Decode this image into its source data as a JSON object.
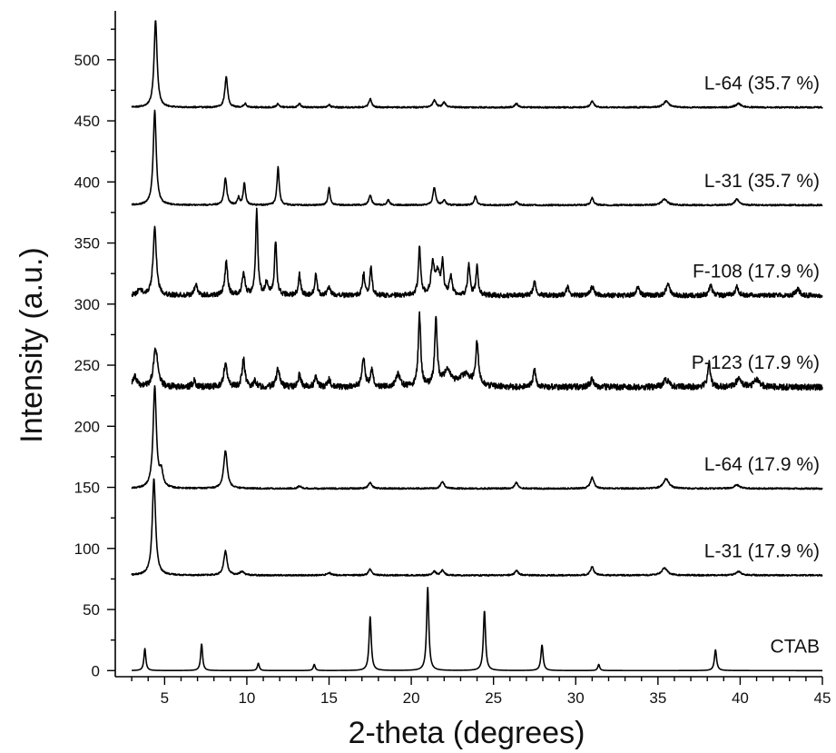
{
  "chart_data": {
    "type": "line",
    "xlabel": "2-theta (degrees)",
    "ylabel": "Intensity (a.u.)",
    "xlim": [
      2,
      45
    ],
    "ylim": [
      -5,
      540
    ],
    "x_ticks": [
      5,
      10,
      15,
      20,
      25,
      30,
      35,
      40,
      45
    ],
    "y_ticks": [
      0,
      50,
      100,
      150,
      200,
      250,
      300,
      350,
      400,
      450,
      500
    ],
    "grid": false,
    "legend": "none",
    "series": [
      {
        "name": "CTAB",
        "baseline": 0,
        "noise": 0,
        "peaks": [
          [
            3.8,
            18,
            0.07
          ],
          [
            7.25,
            22,
            0.07
          ],
          [
            10.7,
            6,
            0.07
          ],
          [
            14.1,
            5,
            0.07
          ],
          [
            17.5,
            44,
            0.08
          ],
          [
            21.0,
            68,
            0.08
          ],
          [
            24.45,
            49,
            0.08
          ],
          [
            27.95,
            21,
            0.08
          ],
          [
            31.4,
            5,
            0.07
          ],
          [
            38.5,
            17,
            0.08
          ]
        ]
      },
      {
        "name": "L-31 (17.9 %)",
        "baseline": 78,
        "noise": 0.6,
        "peaks": [
          [
            4.35,
            79,
            0.12
          ],
          [
            8.7,
            20,
            0.12
          ],
          [
            9.7,
            3,
            0.15
          ],
          [
            15.0,
            2,
            0.15
          ],
          [
            17.5,
            5,
            0.12
          ],
          [
            21.4,
            3,
            0.12
          ],
          [
            21.9,
            4,
            0.12
          ],
          [
            26.4,
            4,
            0.12
          ],
          [
            31.0,
            7,
            0.12
          ],
          [
            35.4,
            6,
            0.2
          ],
          [
            39.9,
            3,
            0.2
          ]
        ]
      },
      {
        "name": "L-64 (17.9 %)",
        "baseline": 149,
        "noise": 0.6,
        "peaks": [
          [
            4.4,
            83,
            0.12
          ],
          [
            4.8,
            12,
            0.12
          ],
          [
            8.7,
            31,
            0.13
          ],
          [
            13.2,
            2,
            0.12
          ],
          [
            17.5,
            5,
            0.12
          ],
          [
            21.9,
            6,
            0.12
          ],
          [
            26.4,
            5,
            0.12
          ],
          [
            31.0,
            9,
            0.13
          ],
          [
            35.5,
            8,
            0.2
          ],
          [
            39.8,
            3,
            0.2
          ]
        ]
      },
      {
        "name": "P-123 (17.9 %)",
        "baseline": 232,
        "noise": 2.5,
        "peaks": [
          [
            3.2,
            8,
            0.15
          ],
          [
            4.45,
            32,
            0.15
          ],
          [
            6.8,
            5,
            0.12
          ],
          [
            8.7,
            19,
            0.12
          ],
          [
            9.8,
            23,
            0.1
          ],
          [
            10.5,
            5,
            0.1
          ],
          [
            11.9,
            15,
            0.12
          ],
          [
            13.2,
            10,
            0.1
          ],
          [
            14.2,
            8,
            0.1
          ],
          [
            15.0,
            6,
            0.1
          ],
          [
            17.1,
            25,
            0.1
          ],
          [
            17.6,
            14,
            0.1
          ],
          [
            19.2,
            10,
            0.15
          ],
          [
            20.5,
            58,
            0.09
          ],
          [
            21.5,
            55,
            0.09
          ],
          [
            22.2,
            12,
            0.3
          ],
          [
            23.3,
            10,
            0.4
          ],
          [
            24.0,
            35,
            0.1
          ],
          [
            27.5,
            14,
            0.1
          ],
          [
            31.0,
            6,
            0.15
          ],
          [
            35.5,
            6,
            0.2
          ],
          [
            38.1,
            20,
            0.1
          ],
          [
            39.9,
            6,
            0.2
          ],
          [
            41.0,
            6,
            0.2
          ]
        ]
      },
      {
        "name": "F-108 (17.9 %)",
        "baseline": 307,
        "noise": 2.0,
        "peaks": [
          [
            3.5,
            5,
            0.15
          ],
          [
            4.4,
            55,
            0.12
          ],
          [
            6.9,
            9,
            0.1
          ],
          [
            8.75,
            28,
            0.1
          ],
          [
            9.8,
            18,
            0.1
          ],
          [
            10.6,
            70,
            0.08
          ],
          [
            11.2,
            10,
            0.1
          ],
          [
            11.75,
            45,
            0.08
          ],
          [
            13.2,
            17,
            0.08
          ],
          [
            14.2,
            18,
            0.08
          ],
          [
            15.0,
            6,
            0.1
          ],
          [
            17.1,
            18,
            0.08
          ],
          [
            17.55,
            23,
            0.08
          ],
          [
            20.5,
            40,
            0.08
          ],
          [
            21.3,
            24,
            0.12
          ],
          [
            21.6,
            18,
            0.15
          ],
          [
            21.9,
            25,
            0.08
          ],
          [
            22.4,
            15,
            0.1
          ],
          [
            23.5,
            26,
            0.08
          ],
          [
            24.0,
            23,
            0.08
          ],
          [
            27.5,
            11,
            0.1
          ],
          [
            29.5,
            7,
            0.1
          ],
          [
            31.0,
            7,
            0.12
          ],
          [
            33.8,
            8,
            0.1
          ],
          [
            35.6,
            10,
            0.12
          ],
          [
            38.2,
            8,
            0.12
          ],
          [
            39.8,
            7,
            0.12
          ],
          [
            43.5,
            5,
            0.15
          ]
        ]
      },
      {
        "name": "L-31 (35.7 %)",
        "baseline": 381,
        "noise": 0.6,
        "peaks": [
          [
            4.4,
            77,
            0.11
          ],
          [
            8.7,
            22,
            0.1
          ],
          [
            9.5,
            6,
            0.08
          ],
          [
            9.85,
            18,
            0.08
          ],
          [
            11.9,
            31,
            0.08
          ],
          [
            15.0,
            14,
            0.08
          ],
          [
            17.5,
            8,
            0.1
          ],
          [
            18.6,
            4,
            0.1
          ],
          [
            21.4,
            14,
            0.1
          ],
          [
            22.0,
            4,
            0.1
          ],
          [
            23.9,
            7,
            0.1
          ],
          [
            26.4,
            3,
            0.1
          ],
          [
            31.0,
            6,
            0.1
          ],
          [
            35.4,
            5,
            0.2
          ],
          [
            39.8,
            5,
            0.15
          ]
        ]
      },
      {
        "name": "L-64 (35.7 %)",
        "baseline": 461,
        "noise": 0.6,
        "peaks": [
          [
            4.45,
            71,
            0.11
          ],
          [
            8.75,
            25,
            0.1
          ],
          [
            9.9,
            3,
            0.1
          ],
          [
            11.9,
            3,
            0.1
          ],
          [
            13.2,
            3,
            0.1
          ],
          [
            15.0,
            2,
            0.1
          ],
          [
            17.5,
            7,
            0.1
          ],
          [
            21.4,
            6,
            0.12
          ],
          [
            22.0,
            4,
            0.12
          ],
          [
            26.4,
            3,
            0.12
          ],
          [
            31.0,
            5,
            0.12
          ],
          [
            35.5,
            5,
            0.2
          ],
          [
            39.9,
            3,
            0.2
          ]
        ]
      }
    ]
  }
}
